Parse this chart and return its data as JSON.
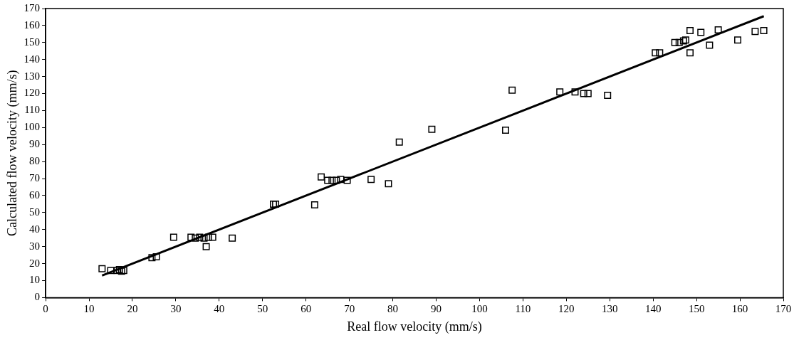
{
  "chart_data": {
    "type": "scatter",
    "xlabel": "Real flow velocity (mm/s)",
    "ylabel": "Calculated flow velocity (mm/s)",
    "xlim": [
      0,
      170
    ],
    "ylim": [
      0,
      170
    ],
    "xticks": [
      0,
      10,
      20,
      30,
      40,
      50,
      60,
      70,
      80,
      90,
      100,
      110,
      120,
      130,
      140,
      150,
      160,
      170
    ],
    "yticks": [
      0,
      10,
      20,
      30,
      40,
      50,
      60,
      70,
      80,
      90,
      100,
      110,
      120,
      130,
      140,
      150,
      160,
      170
    ],
    "grid": false,
    "legend": false,
    "marker": "square",
    "series": [
      {
        "color": "#000000",
        "x": [
          13,
          15,
          16.5,
          17,
          17.5,
          18,
          24.5,
          25.5,
          29.5,
          33.5,
          34.5,
          35.5,
          36.5,
          37.5,
          38.5,
          37,
          43,
          52.5,
          53,
          62,
          63.5,
          65,
          66,
          67,
          68,
          69.5,
          75,
          79,
          81.5,
          89,
          106,
          107.5,
          118.5,
          122,
          124,
          125,
          129.5,
          140.5,
          141.5,
          145,
          146,
          147,
          147.5,
          148.5,
          148.5,
          151,
          153,
          155,
          159.5,
          163.5,
          165.5
        ],
        "values": [
          17,
          16,
          16,
          16.5,
          15.5,
          16,
          23.5,
          24,
          35.5,
          35.5,
          35,
          35.5,
          35,
          35.5,
          35.5,
          30,
          35,
          55,
          55,
          54.5,
          71,
          69,
          69,
          69,
          69.5,
          69,
          69.5,
          67,
          91.5,
          99,
          98.5,
          122,
          121,
          121,
          120,
          120,
          119,
          144,
          144,
          150,
          150,
          151,
          151.5,
          157,
          144,
          156,
          148.5,
          157.5,
          151.5,
          156.5,
          157
        ]
      },
      {
        "type": "line",
        "color": "#000000",
        "marker": "none",
        "line_style": "solid",
        "x": [
          13,
          165.5
        ],
        "values": [
          13,
          165.5
        ]
      }
    ]
  }
}
